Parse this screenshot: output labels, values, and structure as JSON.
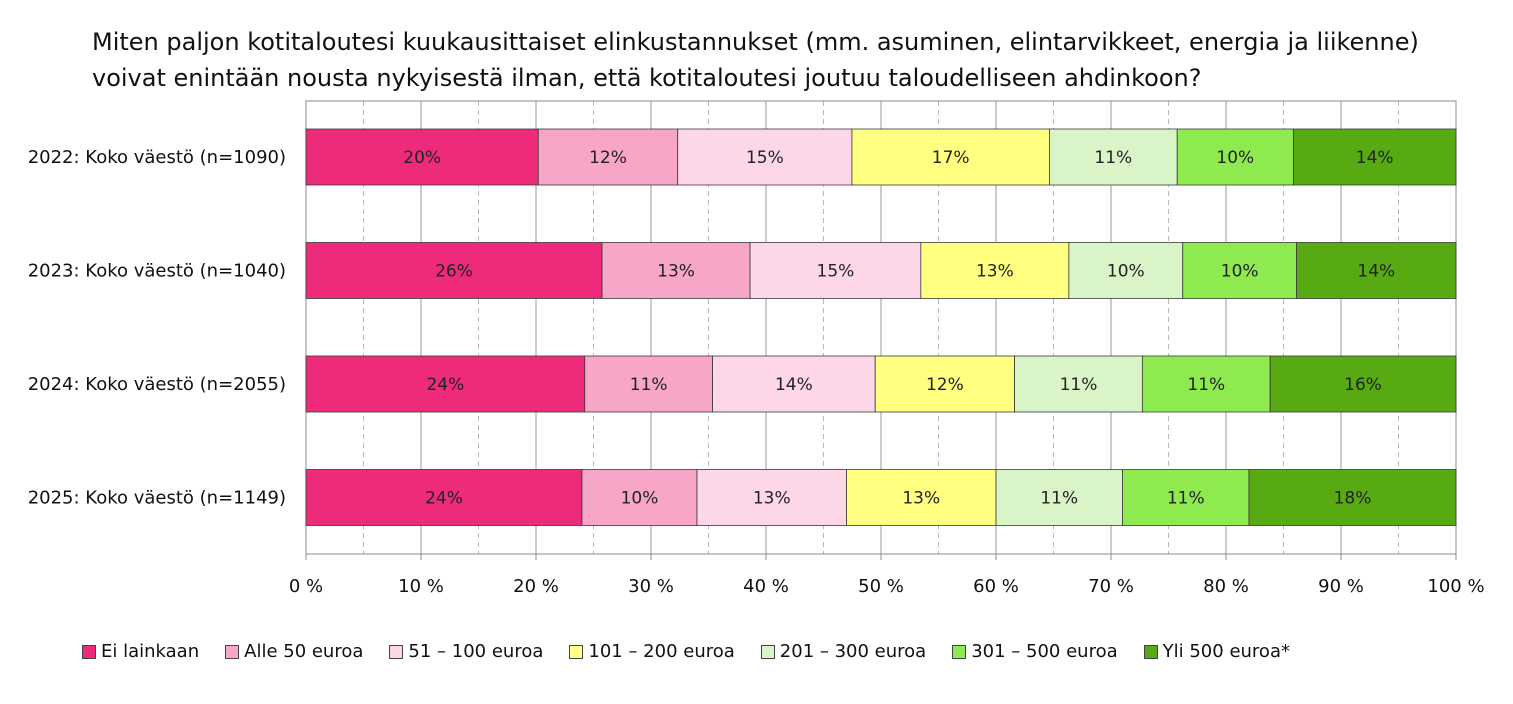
{
  "chart_data": {
    "type": "bar",
    "orientation": "horizontal",
    "stacked": true,
    "percent_stacked": true,
    "title": "Miten paljon kotitaloutesi kuukausittaiset elinkustannukset (mm. asuminen, elintarvikkeet, energia ja liikenne) voivat enintään nousta nykyisestä ilman, että kotitaloutesi joutuu taloudelliseen ahdinkoon?",
    "categories": [
      "2022: Koko väestö (n=1090)",
      "2023: Koko väestö (n=1040)",
      "2024: Koko väestö (n=2055)",
      "2025: Koko väestö (n=1149)"
    ],
    "series": [
      {
        "name": "Ei lainkaan",
        "color": "#EE2A7B",
        "values": [
          20,
          26,
          24,
          24
        ],
        "labels": [
          "20%",
          "26%",
          "24%",
          "24%"
        ]
      },
      {
        "name": "Alle 50 euroa",
        "color": "#F7A6C8",
        "values": [
          12,
          13,
          11,
          10
        ],
        "labels": [
          "12%",
          "13%",
          "11%",
          "10%"
        ]
      },
      {
        "name": "51 – 100 euroa",
        "color": "#FDD7E8",
        "values": [
          15,
          15,
          14,
          13
        ],
        "labels": [
          "15%",
          "15%",
          "14%",
          "13%"
        ]
      },
      {
        "name": "101 – 200 euroa",
        "color": "#FFFF80",
        "values": [
          17,
          13,
          12,
          13
        ],
        "labels": [
          "17%",
          "13%",
          "12%",
          "13%"
        ]
      },
      {
        "name": "201 – 300 euroa",
        "color": "#D9F5C8",
        "values": [
          11,
          10,
          11,
          11
        ],
        "labels": [
          "11%",
          "10%",
          "11%",
          "11%"
        ]
      },
      {
        "name": "301 – 500 euroa",
        "color": "#8EEA4E",
        "values": [
          10,
          10,
          11,
          11
        ],
        "labels": [
          "10%",
          "10%",
          "11%",
          "11%"
        ]
      },
      {
        "name": "Yli 500 euroa*",
        "color": "#57AA12",
        "values": [
          14,
          14,
          16,
          18
        ],
        "labels": [
          "14%",
          "14%",
          "16%",
          "18%"
        ]
      }
    ],
    "xlim": [
      0,
      100
    ],
    "x_ticks": [
      "0 %",
      "10 %",
      "20 %",
      "30 %",
      "40 %",
      "50 %",
      "60 %",
      "70 %",
      "80 %",
      "90 %",
      "100 %"
    ],
    "grid": "vertical",
    "legend_position": "bottom"
  }
}
